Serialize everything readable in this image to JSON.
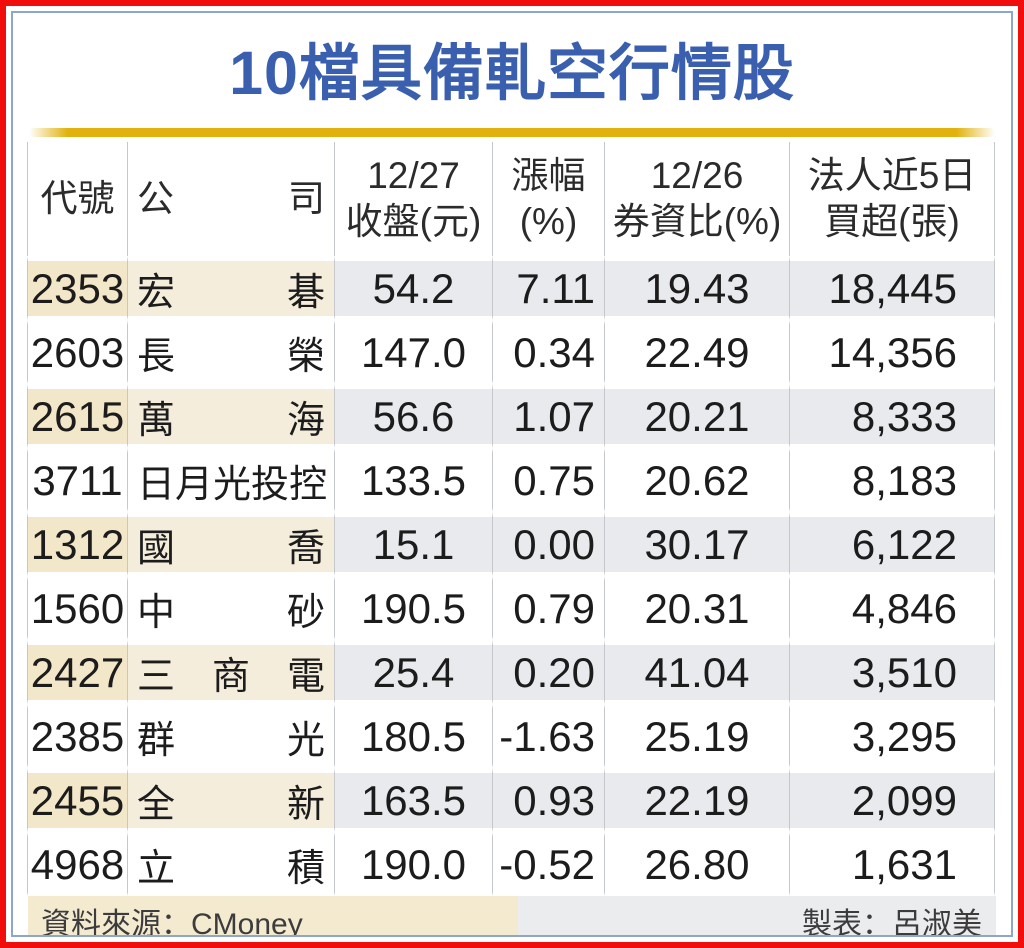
{
  "title": "10檔具備軋空行情股",
  "chart_data": {
    "type": "table",
    "title": "10檔具備軋空行情股",
    "columns": [
      {
        "id": "code",
        "line1": "代號",
        "line2": ""
      },
      {
        "id": "company",
        "line1": "公司",
        "line2": ""
      },
      {
        "id": "close",
        "line1": "12/27",
        "line2": "收盤(元)"
      },
      {
        "id": "change",
        "line1": "漲幅",
        "line2": "(%)"
      },
      {
        "id": "ratio",
        "line1": "12/26",
        "line2": "券資比(%)"
      },
      {
        "id": "net_buy",
        "line1": "法人近5日",
        "line2": "買超(張)"
      }
    ],
    "rows": [
      {
        "code": "2353",
        "company": "宏碁",
        "close": "54.2",
        "change": "7.11",
        "ratio": "19.43",
        "net_buy": "18,445"
      },
      {
        "code": "2603",
        "company": "長榮",
        "close": "147.0",
        "change": "0.34",
        "ratio": "22.49",
        "net_buy": "14,356"
      },
      {
        "code": "2615",
        "company": "萬海",
        "close": "56.6",
        "change": "1.07",
        "ratio": "20.21",
        "net_buy": "8,333"
      },
      {
        "code": "3711",
        "company": "日月光投控",
        "close": "133.5",
        "change": "0.75",
        "ratio": "20.62",
        "net_buy": "8,183"
      },
      {
        "code": "1312",
        "company": "國喬",
        "close": "15.1",
        "change": "0.00",
        "ratio": "30.17",
        "net_buy": "6,122"
      },
      {
        "code": "1560",
        "company": "中砂",
        "close": "190.5",
        "change": "0.79",
        "ratio": "20.31",
        "net_buy": "4,846"
      },
      {
        "code": "2427",
        "company": "三商電",
        "close": "25.4",
        "change": "0.20",
        "ratio": "41.04",
        "net_buy": "3,510"
      },
      {
        "code": "2385",
        "company": "群光",
        "close": "180.5",
        "change": "-1.63",
        "ratio": "25.19",
        "net_buy": "3,295"
      },
      {
        "code": "2455",
        "company": "全新",
        "close": "163.5",
        "change": "0.93",
        "ratio": "22.19",
        "net_buy": "2,099"
      },
      {
        "code": "4968",
        "company": "立積",
        "close": "190.0",
        "change": "-0.52",
        "ratio": "26.80",
        "net_buy": "1,631"
      }
    ],
    "shaded_row_indices": [
      0,
      2,
      4,
      6,
      8
    ],
    "legend_position": "none",
    "grid": "vertical-separators-only"
  },
  "footer": {
    "source": "資料來源：CMoney",
    "credit": "製表：呂淑美"
  },
  "colors": {
    "title_blue": "#3a5fae",
    "gold_rule": "#e1b20d",
    "frame_red": "#f20d0d",
    "panel_border_blue": "#8fa6cb",
    "shaded_code_beige": "#f2e7c8",
    "shaded_company_beige": "#f4eddb",
    "shaded_numeric_gray": "#e9eaee",
    "footer_source_beige": "#f3ead0",
    "footer_credit_gray": "#eaecee",
    "separator_gray": "#c4c7cc",
    "text_dark": "#1c1c1c"
  }
}
